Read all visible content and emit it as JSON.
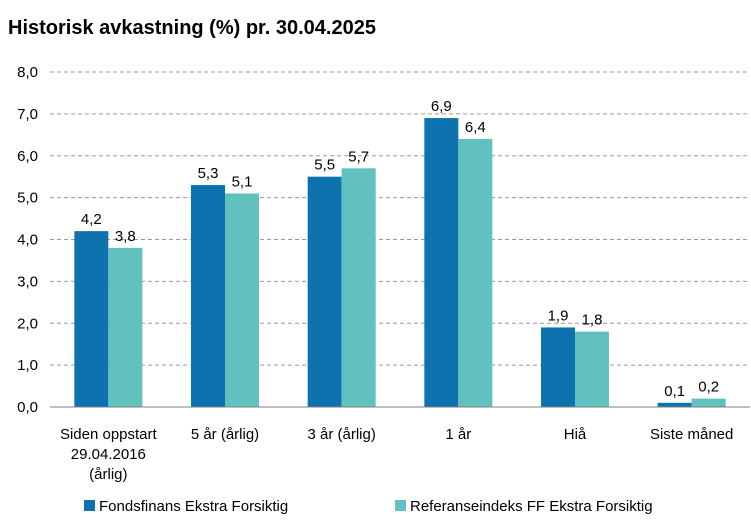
{
  "chart_data": {
    "type": "bar",
    "title": "Historisk avkastning (%) pr. 30.04.2025",
    "categories": [
      [
        "Siden oppstart",
        "29.04.2016",
        "(årlig)"
      ],
      [
        "5 år (årlig)"
      ],
      [
        "3 år (årlig)"
      ],
      [
        "1 år"
      ],
      [
        "Hiå"
      ],
      [
        "Siste måned"
      ]
    ],
    "series": [
      {
        "name": "Fondsfinans Ekstra Forsiktig",
        "color": "#0e72ae",
        "values": [
          4.2,
          5.3,
          5.5,
          6.9,
          1.9,
          0.1
        ],
        "labels": [
          "4,2",
          "5,3",
          "5,5",
          "6,9",
          "1,9",
          "0,1"
        ]
      },
      {
        "name": "Referanseindeks FF Ekstra Forsiktig",
        "color": "#61c1bf",
        "values": [
          3.8,
          5.1,
          5.7,
          6.4,
          1.8,
          0.2
        ],
        "labels": [
          "3,8",
          "5,1",
          "5,7",
          "6,4",
          "1,8",
          "0,2"
        ]
      }
    ],
    "ylim": [
      0,
      8
    ],
    "yticks": [
      0,
      1,
      2,
      3,
      4,
      5,
      6,
      7,
      8
    ],
    "ytick_labels": [
      "0,0",
      "1,0",
      "2,0",
      "3,0",
      "4,0",
      "5,0",
      "6,0",
      "7,0",
      "8,0"
    ],
    "xlabel": "",
    "ylabel": "",
    "grid": "horizontal-dashed",
    "legend": "bottom"
  }
}
